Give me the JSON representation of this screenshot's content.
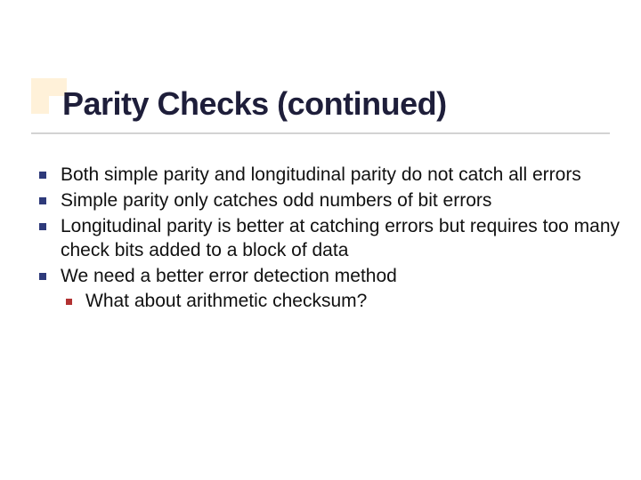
{
  "slide": {
    "title": "Parity Checks (continued)",
    "title_color": "#1e1e3a",
    "title_fontsize": 36,
    "underline_color": "rgba(128,128,128,0.35)",
    "body_color": "#111",
    "body_fontsize": 21,
    "bullet_color_l1": "#2e3a7a",
    "bullet_color_l2": "#b23232",
    "background_color": "#ffffff",
    "decoration": {
      "squares_fill": "rgba(255,160,0,0.15)"
    },
    "bullets": [
      {
        "text": "Both simple parity and longitudinal parity do not catch all errors"
      },
      {
        "text": "Simple parity only catches odd numbers of bit errors"
      },
      {
        "text": "Longitudinal parity is better at catching errors but requires too many check bits added to a block of data"
      },
      {
        "text": "We need a better error detection method",
        "sub": [
          {
            "text": "What about arithmetic checksum?"
          }
        ]
      }
    ]
  }
}
